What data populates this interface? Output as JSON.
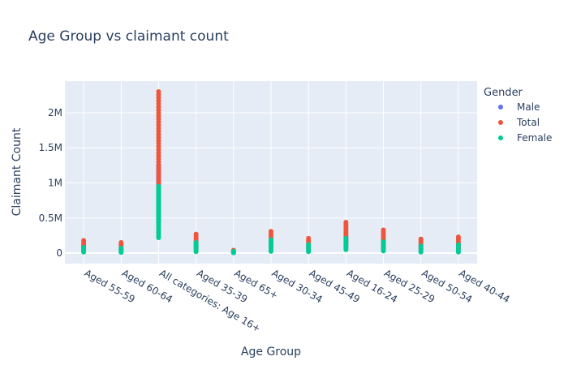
{
  "chart_data": {
    "type": "scatter",
    "title": "Age Group vs claimant count",
    "xlabel": "Age Group",
    "ylabel": "Claimant Count",
    "categories": [
      "Aged 55-59",
      "Aged 60-64",
      "All categories: Age 16+",
      "Aged 35-39",
      "Aged 65+",
      "Aged 30-34",
      "Aged 45-49",
      "Aged 16-24",
      "Aged 25-29",
      "Aged 50-54",
      "Aged 40-44"
    ],
    "ylim": [
      -150000,
      2450000
    ],
    "yticks": [
      0,
      500000,
      1000000,
      1500000,
      2000000
    ],
    "ytick_labels": [
      "0",
      "0.5M",
      "1M",
      "1.5M",
      "2M"
    ],
    "legend_title": "Gender",
    "legend_position": "top-right",
    "grid": true,
    "colors": {
      "Male": "#636efa",
      "Total": "#ef553b",
      "Female": "#00cc96",
      "plot_bg": "#e5ecf6",
      "grid": "#ffffff",
      "text": "#2a3f5f"
    },
    "series": [
      {
        "name": "Male",
        "ranges": [
          [
            30000,
            100000
          ],
          [
            25000,
            90000
          ],
          [
            450000,
            1250000
          ],
          [
            40000,
            140000
          ],
          [
            5000,
            20000
          ],
          [
            50000,
            160000
          ],
          [
            35000,
            120000
          ],
          [
            70000,
            230000
          ],
          [
            55000,
            170000
          ],
          [
            35000,
            110000
          ],
          [
            40000,
            120000
          ]
        ]
      },
      {
        "name": "Total",
        "ranges": [
          [
            60000,
            180000
          ],
          [
            50000,
            150000
          ],
          [
            950000,
            2300000
          ],
          [
            80000,
            270000
          ],
          [
            10000,
            40000
          ],
          [
            100000,
            310000
          ],
          [
            60000,
            210000
          ],
          [
            130000,
            440000
          ],
          [
            100000,
            330000
          ],
          [
            60000,
            200000
          ],
          [
            70000,
            230000
          ]
        ]
      },
      {
        "name": "Female",
        "ranges": [
          [
            15000,
            80000
          ],
          [
            10000,
            70000
          ],
          [
            220000,
            950000
          ],
          [
            20000,
            150000
          ],
          [
            5000,
            25000
          ],
          [
            25000,
            190000
          ],
          [
            20000,
            120000
          ],
          [
            50000,
            210000
          ],
          [
            30000,
            160000
          ],
          [
            15000,
            100000
          ],
          [
            15000,
            120000
          ]
        ]
      }
    ]
  }
}
